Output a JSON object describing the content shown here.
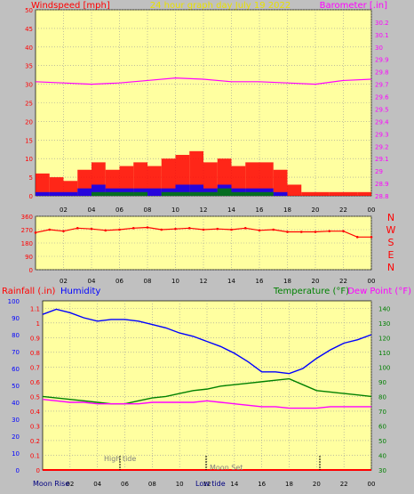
{
  "header": {
    "left_title": "Windspeed [mph]",
    "center_title": "24 hour graph day   July 19 2022",
    "right_title": "Barometer [.in]"
  },
  "lower_header": {
    "rainfall": "Rainfall (.in)",
    "humidity": "Humidity",
    "temperature": "Temperature (°F)",
    "dewpoint": "Dew Point (°F)"
  },
  "direction_labels": [
    "N",
    "W",
    "S",
    "E",
    "N"
  ],
  "bottom_labels": {
    "moon_rise": "Moon Rise",
    "high_tide": "High tide",
    "moon_set": "Moon Set",
    "low_tide": "Low tide"
  },
  "colors": {
    "plot_bg": "#ffffa0",
    "frame_bg": "#c0c0c0",
    "red": "#ff0000",
    "blue": "#0000ff",
    "green": "#008000",
    "magenta": "#ff00ff",
    "title_yellow": "#e8e000"
  },
  "chart_data": [
    {
      "type": "line",
      "ylabel": "Windspeed [mph]",
      "y2label": "Barometer [.in]",
      "x_tick_labels": [
        "02",
        "04",
        "06",
        "08",
        "10",
        "12",
        "14",
        "16",
        "18",
        "20",
        "22",
        "00"
      ],
      "ylim": [
        0,
        50
      ],
      "y_ticks": [
        0,
        5,
        10,
        15,
        20,
        25,
        30,
        35,
        40,
        45,
        50
      ],
      "y2lim": [
        28.8,
        30.3
      ],
      "y2_ticks": [
        "28.8",
        "28.9",
        "29",
        "29.1",
        "29.2",
        "29.3",
        "29.4",
        "29.5",
        "29.6",
        "29.7",
        "29.8",
        "29.9",
        "30",
        "30.1",
        "30.2"
      ],
      "series": [
        {
          "role": "wind gust",
          "color": "#ff0000",
          "x": [
            0,
            1,
            2,
            3,
            4,
            5,
            6,
            7,
            8,
            9,
            10,
            11,
            12,
            13,
            14,
            15,
            16,
            17,
            18,
            19,
            20,
            21,
            22,
            23,
            24
          ],
          "values": [
            6,
            5,
            4,
            7,
            9,
            7,
            8,
            9,
            8,
            10,
            11,
            12,
            9,
            10,
            8,
            9,
            9,
            7,
            3,
            1,
            1,
            1,
            1,
            1,
            1
          ]
        },
        {
          "role": "wind average",
          "color": "#0000ff",
          "x": [
            0,
            1,
            2,
            3,
            4,
            5,
            6,
            7,
            8,
            9,
            10,
            11,
            12,
            13,
            14,
            15,
            16,
            17,
            18,
            19,
            20,
            21,
            22,
            23,
            24
          ],
          "values": [
            1,
            1,
            1,
            2,
            3,
            2,
            2,
            2,
            2,
            2,
            3,
            3,
            2,
            3,
            2,
            2,
            2,
            1,
            0,
            0,
            0,
            0,
            0,
            0,
            0
          ]
        },
        {
          "role": "wind low",
          "color": "#008000",
          "x": [
            0,
            1,
            2,
            3,
            4,
            5,
            6,
            7,
            8,
            9,
            10,
            11,
            12,
            13,
            14,
            15,
            16,
            17,
            18,
            19,
            20,
            21,
            22,
            23,
            24
          ],
          "values": [
            0,
            0,
            0,
            0,
            1,
            1,
            1,
            1,
            0,
            1,
            1,
            1,
            1,
            2,
            1,
            1,
            1,
            0,
            0,
            0,
            0,
            0,
            0,
            0,
            0
          ]
        },
        {
          "role": "barometer",
          "color": "#ff00ff",
          "axis": "right",
          "x": [
            0,
            2,
            4,
            6,
            8,
            10,
            12,
            14,
            16,
            18,
            20,
            22,
            24
          ],
          "values": [
            29.72,
            29.71,
            29.7,
            29.71,
            29.73,
            29.75,
            29.74,
            29.72,
            29.72,
            29.71,
            29.7,
            29.73,
            29.74
          ]
        }
      ]
    },
    {
      "type": "scatter",
      "x_tick_labels": [
        "02",
        "04",
        "06",
        "08",
        "10",
        "12",
        "14",
        "16",
        "18",
        "20",
        "22",
        "00"
      ],
      "ylim": [
        0,
        360
      ],
      "y_ticks": [
        0,
        90,
        180,
        270,
        360
      ],
      "series": [
        {
          "role": "wind direction",
          "color": "#ff0000",
          "x": [
            0,
            1,
            2,
            3,
            4,
            5,
            6,
            7,
            8,
            9,
            10,
            11,
            12,
            13,
            14,
            15,
            16,
            17,
            18,
            19,
            20,
            21,
            22,
            23,
            24
          ],
          "values": [
            250,
            270,
            260,
            280,
            275,
            265,
            270,
            280,
            285,
            270,
            275,
            280,
            270,
            275,
            270,
            280,
            265,
            270,
            255,
            255,
            255,
            260,
            260,
            220,
            220
          ]
        }
      ]
    },
    {
      "type": "line",
      "ylabel": "Rainfall (.in)",
      "y2label": "Temperature (°F)",
      "x_tick_labels": [
        "02",
        "04",
        "06",
        "08",
        "10",
        "12",
        "14",
        "16",
        "18",
        "20",
        "22",
        "00"
      ],
      "y_ticks": [
        "0",
        "0.1",
        "0.2",
        "0.3",
        "0.4",
        "0.5",
        "0.6",
        "0.7",
        "0.8",
        "0.9",
        "1",
        "1.1"
      ],
      "ylim": [
        0,
        1.15
      ],
      "humidity_ticks": [
        0,
        10,
        20,
        30,
        40,
        50,
        60,
        70,
        80,
        90,
        100
      ],
      "humidity_lim": [
        0,
        100
      ],
      "y2lim": [
        30,
        145
      ],
      "y2_ticks": [
        30,
        40,
        50,
        60,
        70,
        80,
        90,
        100,
        110,
        120,
        130,
        140
      ],
      "series": [
        {
          "role": "humidity",
          "color": "#0000ff",
          "axis": "humidity",
          "x": [
            0,
            1,
            2,
            3,
            4,
            5,
            6,
            7,
            8,
            9,
            10,
            11,
            12,
            13,
            14,
            15,
            16,
            17,
            18,
            19,
            20,
            21,
            22,
            23,
            24
          ],
          "values": [
            92,
            95,
            93,
            90,
            88,
            89,
            89,
            88,
            86,
            84,
            81,
            79,
            76,
            73,
            69,
            64,
            58,
            58,
            57,
            60,
            66,
            71,
            75,
            77,
            80
          ]
        },
        {
          "role": "temperature",
          "color": "#008000",
          "axis": "right",
          "x": [
            0,
            1,
            2,
            3,
            4,
            5,
            6,
            7,
            8,
            9,
            10,
            11,
            12,
            13,
            14,
            15,
            16,
            17,
            18,
            19,
            20,
            21,
            22,
            23,
            24
          ],
          "values": [
            80,
            79,
            78,
            77,
            76,
            75,
            75,
            77,
            79,
            80,
            82,
            84,
            85,
            87,
            88,
            89,
            90,
            91,
            92,
            88,
            84,
            83,
            82,
            81,
            80
          ]
        },
        {
          "role": "dew point",
          "color": "#ff00ff",
          "axis": "right",
          "x": [
            0,
            1,
            2,
            3,
            4,
            5,
            6,
            7,
            8,
            9,
            10,
            11,
            12,
            13,
            14,
            15,
            16,
            17,
            18,
            19,
            20,
            21,
            22,
            23,
            24
          ],
          "values": [
            78,
            77,
            76,
            76,
            75,
            75,
            75,
            75,
            76,
            76,
            76,
            76,
            77,
            76,
            75,
            74,
            73,
            73,
            72,
            72,
            72,
            73,
            73,
            73,
            73
          ]
        },
        {
          "role": "rainfall",
          "color": "#ff0000",
          "axis": "left",
          "x": [
            0,
            24
          ],
          "values": [
            0,
            0
          ]
        }
      ]
    }
  ]
}
